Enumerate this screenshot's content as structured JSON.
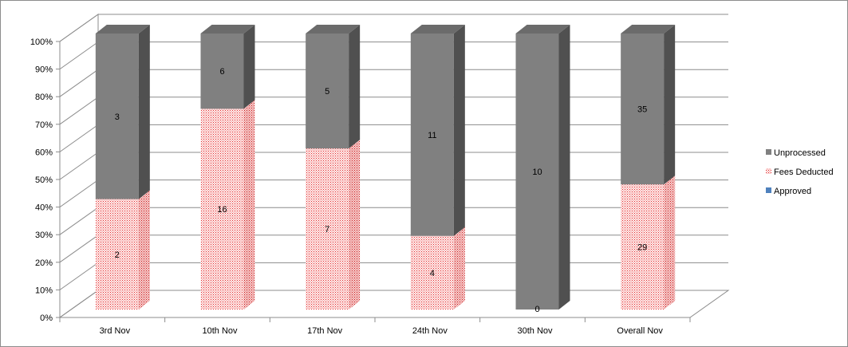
{
  "chart_data": {
    "type": "bar",
    "stacked": "percent",
    "three_d": true,
    "categories": [
      "3rd Nov",
      "10th Nov",
      "17th Nov",
      "24th Nov",
      "30th Nov",
      "Overall Nov"
    ],
    "series": [
      {
        "name": "Approved",
        "values": [
          0,
          0,
          0,
          0,
          0,
          0
        ],
        "color": "#4f81bd"
      },
      {
        "name": "Fees Deducted",
        "values": [
          2,
          16,
          7,
          4,
          0,
          29
        ],
        "color": "#f4aaaa",
        "pattern": "dotted-red"
      },
      {
        "name": "Unprocessed",
        "values": [
          3,
          6,
          5,
          11,
          10,
          35
        ],
        "color": "#7f7f7f"
      }
    ],
    "data_labels": {
      "Fees Deducted": [
        "2",
        "16",
        "7",
        "4",
        "",
        "29"
      ],
      "Unprocessed": [
        "3",
        "6",
        "5",
        "11",
        "10",
        "35"
      ],
      "Approved": [
        "",
        "",
        "",
        "",
        "0",
        ""
      ]
    },
    "y_ticks": [
      "0%",
      "10%",
      "20%",
      "30%",
      "40%",
      "50%",
      "60%",
      "70%",
      "80%",
      "90%",
      "100%"
    ],
    "ylim": [
      0,
      100
    ],
    "grid": true,
    "legend": {
      "placement": "right",
      "order": [
        "Unprocessed",
        "Fees Deducted",
        "Approved"
      ]
    }
  }
}
